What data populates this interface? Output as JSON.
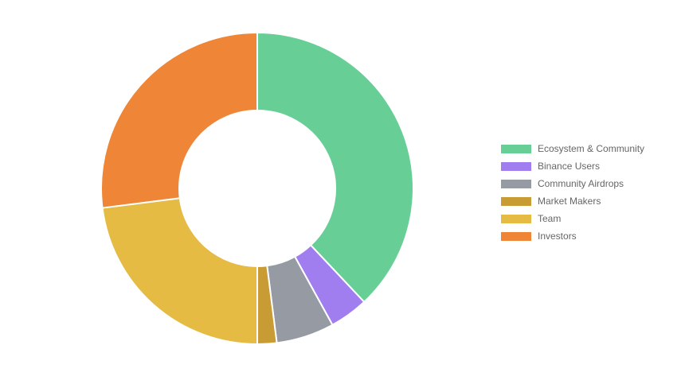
{
  "chart_data": {
    "type": "pie",
    "subtype": "doughnut",
    "labels": [
      "Ecosystem & Community",
      "Binance Users",
      "Community Airdrops",
      "Market Makers",
      "Team",
      "Investors"
    ],
    "values": [
      38,
      4,
      6,
      2,
      23,
      27
    ],
    "colors": [
      "#67cf96",
      "#a07ef0",
      "#959aa3",
      "#c89b35",
      "#e5bb43",
      "#ef8536"
    ],
    "legend": "right",
    "title": ""
  }
}
